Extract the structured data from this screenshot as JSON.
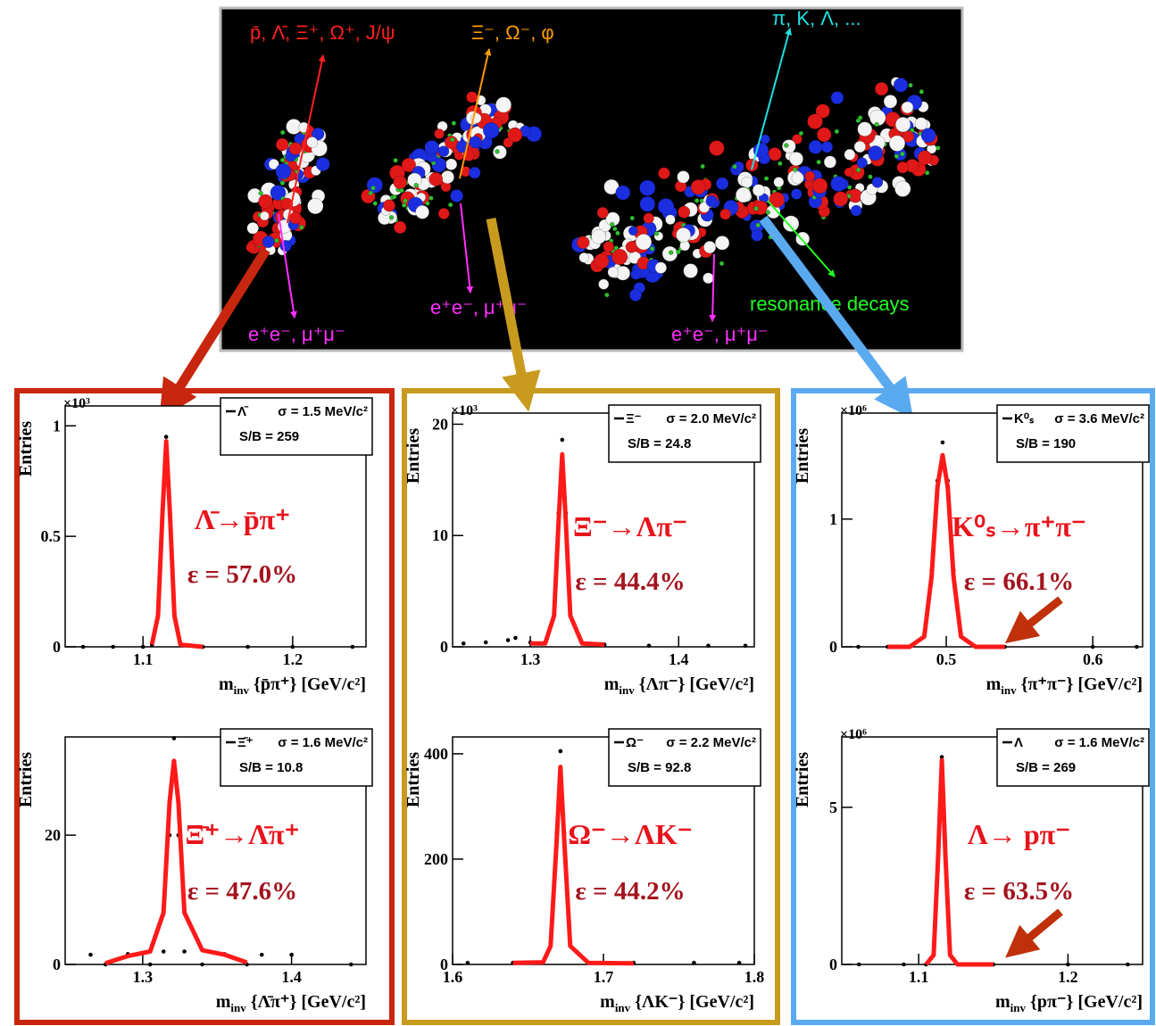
{
  "event_display": {
    "labels": [
      "p̄, Λ̄, Ξ⁺, Ω⁺, J/ψ",
      "Ξ⁻, Ω⁻, φ",
      "π, K, Λ, ...",
      "e⁺e⁻, μ⁺μ⁻",
      "e⁺e⁻, μ⁺μ⁻",
      "e⁺e⁻, μ⁺μ⁻",
      "resonance decays"
    ]
  },
  "chart_data": [
    {
      "type": "line",
      "ylabel": "Entries",
      "y_multiplier": "×10³",
      "xlabel": [
        "m",
        "inv",
        " {p̄π⁺} [GeV/c²]"
      ],
      "legend": {
        "sigma": "σ = 1.5 MeV/c²",
        "sb": "S/B =  259"
      },
      "decay": "Λ̄→p̄π⁺",
      "efficiency": "ε = 57.0%",
      "xlim": [
        1.048,
        1.249
      ],
      "xticks": [
        1.1,
        1.2
      ],
      "ylim": [
        0,
        1.09
      ],
      "yticks": [
        0,
        0.5,
        1
      ],
      "x": [
        1.06,
        1.08,
        1.1,
        1.106,
        1.11,
        1.113,
        1.1155,
        1.118,
        1.121,
        1.125,
        1.14,
        1.17,
        1.2,
        1.24
      ],
      "series": [
        {
          "name": "Λ̄",
          "color": "#000000",
          "values": [
            0,
            0,
            0,
            0.01,
            0.15,
            0.62,
            0.95,
            0.62,
            0.15,
            0.01,
            0,
            0,
            0,
            0
          ]
        },
        {
          "color": "#ff1a1a",
          "values": [
            null,
            null,
            null,
            0.01,
            0.14,
            0.6,
            0.93,
            0.6,
            0.14,
            0.01,
            0,
            null,
            null,
            null
          ]
        }
      ]
    },
    {
      "type": "line",
      "ylabel": "Entries",
      "y_multiplier": "×10³",
      "xlabel": [
        "m",
        "inv",
        " {Λπ⁻} [GeV/c²]"
      ],
      "legend": {
        "sigma": "σ = 2.0 MeV/c²",
        "sb": "S/B = 24.8"
      },
      "decay": "Ξ⁻→Λπ⁻",
      "efficiency": "ε = 44.4%",
      "xlim": [
        1.2476,
        1.451
      ],
      "xticks": [
        1.3,
        1.4
      ],
      "ylim": [
        0,
        21
      ],
      "yticks": [
        0,
        10,
        20
      ],
      "x": [
        1.255,
        1.27,
        1.285,
        1.29,
        1.3,
        1.31,
        1.316,
        1.319,
        1.3215,
        1.324,
        1.327,
        1.335,
        1.35,
        1.38,
        1.42,
        1.445
      ],
      "series": [
        {
          "name": "Ξ⁻",
          "color": "#000000",
          "values": [
            0.3,
            0.4,
            0.6,
            0.8,
            0.4,
            0.3,
            3,
            12,
            18.6,
            12,
            3,
            0.3,
            0.2,
            0.1,
            0.1,
            0.1
          ]
        },
        {
          "color": "#ff1a1a",
          "values": [
            null,
            null,
            null,
            null,
            0.3,
            0.3,
            2.8,
            11,
            17.3,
            11,
            2.8,
            0.3,
            0.2,
            null,
            null,
            null
          ]
        }
      ]
    },
    {
      "type": "line",
      "ylabel": "Entries",
      "y_multiplier": "×10⁶",
      "xlabel": [
        "m",
        "inv",
        " {π⁺π⁻} [GeV/c²]"
      ],
      "legend": {
        "sigma": "σ = 3.6 MeV/c²",
        "sb": "S/B =  190"
      },
      "decay": "K⁰ₛ→π⁺π⁻",
      "efficiency": "ε = 66.1%",
      "xlim": [
        0.4287,
        0.634
      ],
      "xticks": [
        0.5,
        0.6
      ],
      "ylim": [
        0,
        1.83
      ],
      "yticks": [
        0,
        1
      ],
      "x": [
        0.44,
        0.46,
        0.475,
        0.485,
        0.49,
        0.494,
        0.4975,
        0.501,
        0.505,
        0.51,
        0.52,
        0.54,
        0.6,
        0.63
      ],
      "series": [
        {
          "name": "K⁰ₛ",
          "color": "#000000",
          "values": [
            0,
            0,
            0,
            0.1,
            0.6,
            1.3,
            1.6,
            1.3,
            0.6,
            0.1,
            0,
            0,
            0,
            0
          ]
        },
        {
          "color": "#ff1a1a",
          "values": [
            null,
            0,
            0,
            0.08,
            0.55,
            1.25,
            1.5,
            1.25,
            0.55,
            0.08,
            0,
            0,
            null,
            null
          ]
        }
      ]
    },
    {
      "type": "line",
      "ylabel": "Entries",
      "xlabel": [
        "m",
        "inv",
        " {Λ̄π⁺} [GeV/c²]"
      ],
      "legend": {
        "sigma": "σ = 1.6 MeV/c²",
        "sb": "S/B = 10.8"
      },
      "decay": "Ξ̄⁺→Λ̄π⁺",
      "efficiency": "ε = 47.6%",
      "xlim": [
        1.2479,
        1.45
      ],
      "xticks": [
        1.3,
        1.4
      ],
      "ylim": [
        0,
        35.2
      ],
      "yticks": [
        0,
        20
      ],
      "x": [
        1.265,
        1.275,
        1.29,
        1.305,
        1.314,
        1.318,
        1.321,
        1.324,
        1.328,
        1.34,
        1.355,
        1.37,
        1.38,
        1.4,
        1.44
      ],
      "series": [
        {
          "name": "Ξ̄⁺",
          "color": "#000000",
          "values": [
            1.5,
            0,
            1.6,
            0,
            2,
            20,
            35,
            20,
            2,
            0,
            1.6,
            0,
            1.5,
            1.5,
            0
          ]
        },
        {
          "color": "#ff1a1a",
          "values": [
            null,
            0.2,
            1.3,
            2,
            8,
            25,
            31.5,
            25,
            8,
            2.2,
            1.5,
            0.3,
            null,
            null,
            null
          ]
        }
      ]
    },
    {
      "type": "line",
      "ylabel": "Entries",
      "xlabel": [
        "m",
        "inv",
        " {ΛK⁻} [GeV/c²]"
      ],
      "legend": {
        "sigma": "σ = 2.2 MeV/c²",
        "sb": "S/B = 92.8"
      },
      "decay": "Ω⁻→ΛK⁻",
      "efficiency": "ε = 44.2%",
      "xlim": [
        1.6,
        1.8
      ],
      "xticks": [
        1.6,
        1.7,
        1.8
      ],
      "ylim": [
        0,
        432
      ],
      "yticks": [
        0,
        200,
        400
      ],
      "x": [
        1.61,
        1.64,
        1.66,
        1.665,
        1.669,
        1.6715,
        1.674,
        1.678,
        1.69,
        1.72,
        1.76,
        1.79
      ],
      "series": [
        {
          "name": "Ω⁻",
          "color": "#000000",
          "values": [
            3,
            3,
            5,
            40,
            250,
            405,
            250,
            40,
            3,
            3,
            3,
            3
          ]
        },
        {
          "color": "#ff1a1a",
          "values": [
            null,
            3,
            4,
            35,
            235,
            375,
            235,
            35,
            3,
            2,
            null,
            null
          ]
        }
      ]
    },
    {
      "type": "line",
      "ylabel": "Entries",
      "y_multiplier": "×10⁶",
      "xlabel": [
        "m",
        "inv",
        " {pπ⁻} [GeV/c²]"
      ],
      "legend": {
        "sigma": "σ = 1.6 MeV/c²",
        "sb": "S/B =  269"
      },
      "decay": "Λ→ pπ⁻",
      "efficiency": "ε = 63.5%",
      "xlim": [
        1.0485,
        1.25
      ],
      "xticks": [
        1.1,
        1.2
      ],
      "ylim": [
        0,
        7.24
      ],
      "yticks": [
        0,
        5
      ],
      "x": [
        1.06,
        1.09,
        1.105,
        1.11,
        1.113,
        1.1155,
        1.118,
        1.121,
        1.126,
        1.15,
        1.2,
        1.24
      ],
      "series": [
        {
          "name": "Λ",
          "color": "#000000",
          "values": [
            0,
            0,
            0,
            0.3,
            3.5,
            6.6,
            3.5,
            0.3,
            0,
            0,
            0,
            0
          ]
        },
        {
          "color": "#ff1a1a",
          "values": [
            null,
            null,
            0,
            0.3,
            3.4,
            6.5,
            3.4,
            0.3,
            0,
            0,
            null,
            null
          ]
        }
      ]
    }
  ]
}
